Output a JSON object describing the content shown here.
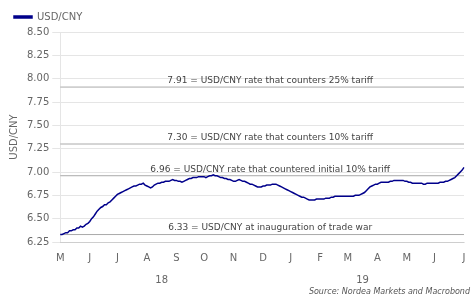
{
  "chart_data": {
    "type": "line",
    "ylabel": "USD/CNY",
    "ylim": [
      6.25,
      8.5
    ],
    "yticks": [
      6.25,
      {
        "value": 6.5,
        "label": "6.50"
      },
      6.75,
      {
        "value": 7,
        "label": "7.00"
      },
      7.25,
      {
        "value": 7.5,
        "label": "7.50"
      },
      7.75,
      {
        "value": 8,
        "label": "8.00"
      },
      8.25,
      {
        "value": 8.5,
        "label": "8.50"
      }
    ],
    "grid": true,
    "legend": "upper left",
    "categories": [
      "M",
      null,
      null,
      null,
      null,
      null,
      null,
      null,
      null,
      null,
      null,
      null,
      null,
      null,
      null,
      null,
      "J",
      null,
      null,
      null,
      null,
      null,
      null,
      null,
      null,
      null,
      null,
      null,
      null,
      null,
      null,
      "J",
      null,
      null,
      null,
      null,
      null,
      null,
      null,
      null,
      null,
      null,
      null,
      null,
      null,
      null,
      null,
      "A",
      null,
      null,
      null,
      null,
      null,
      null,
      null,
      null,
      null,
      null,
      null,
      null,
      null,
      null,
      null,
      "S",
      null,
      null,
      null,
      null,
      null,
      null,
      null,
      null,
      null,
      null,
      null,
      null,
      null,
      null,
      "O",
      null,
      null,
      null,
      null,
      null,
      null,
      null,
      null,
      null,
      null,
      null,
      null,
      null,
      null,
      null,
      "N",
      null,
      null,
      null,
      null,
      null,
      null,
      null,
      null,
      null,
      null,
      null,
      null,
      null,
      null,
      null,
      "D",
      null,
      null,
      null,
      null,
      null,
      null,
      null,
      null,
      null,
      null,
      null,
      null,
      null,
      null,
      "J",
      null,
      null,
      null,
      null,
      null,
      null,
      null,
      null,
      null,
      null,
      null,
      null,
      null,
      null,
      null,
      "F",
      null,
      null,
      null,
      null,
      null,
      null,
      null,
      null,
      null,
      null,
      null,
      null,
      null,
      null,
      "M",
      null,
      null,
      null,
      null,
      null,
      null,
      null,
      null,
      null,
      null,
      null,
      null,
      null,
      null,
      null,
      "A",
      null,
      null,
      null,
      null,
      null,
      null,
      null,
      null,
      null,
      null,
      null,
      null,
      null,
      null,
      null,
      "M",
      null,
      null,
      null,
      null,
      null,
      null,
      null,
      null,
      null,
      null,
      null,
      null,
      null,
      null,
      "J",
      null,
      null,
      null,
      null,
      null,
      null,
      null,
      null,
      null,
      null,
      null,
      null,
      null,
      null,
      null,
      "J"
    ],
    "year_labels": [
      null,
      null,
      null,
      null,
      null,
      null,
      null,
      null,
      null,
      null,
      null,
      null,
      null,
      null,
      null,
      null,
      null,
      null,
      null,
      null,
      null,
      null,
      null,
      null,
      null,
      null,
      null,
      null,
      null,
      null,
      null,
      null,
      null,
      null,
      null,
      null,
      null,
      null,
      null,
      null,
      null,
      null,
      null,
      null,
      null,
      null,
      null,
      null,
      null,
      null,
      null,
      null,
      null,
      null,
      null,
      "18",
      null,
      null,
      null,
      null,
      null,
      null,
      null,
      null,
      null,
      null,
      null,
      null,
      null,
      null,
      null,
      null,
      null,
      null,
      null,
      null,
      null,
      null,
      null,
      null,
      null,
      null,
      null,
      null,
      null,
      null,
      null,
      null,
      null,
      null,
      null,
      null,
      null,
      null,
      null,
      null,
      null,
      null,
      null,
      null,
      null,
      null,
      null,
      null,
      null,
      null,
      null,
      null,
      null,
      null,
      null,
      null,
      null,
      null,
      null,
      null,
      null,
      null,
      null,
      null,
      null,
      null,
      null,
      null,
      null,
      null,
      null,
      null,
      null,
      null,
      null,
      null,
      null,
      null,
      null,
      null,
      null,
      null,
      null,
      null,
      null,
      null,
      null,
      null,
      null,
      null,
      null,
      null,
      null,
      null,
      null,
      null,
      null,
      null,
      null,
      null,
      null,
      null,
      null,
      null,
      null,
      null,
      null,
      null,
      "19",
      null,
      null,
      null,
      null,
      null,
      null,
      null,
      null,
      null,
      null,
      null,
      null,
      null,
      null,
      null,
      null,
      null,
      null,
      null,
      null,
      null,
      null,
      null,
      null,
      null,
      null,
      null,
      null,
      null,
      null,
      null,
      null,
      null,
      null,
      null,
      null,
      null,
      null,
      null,
      null,
      null,
      null,
      null,
      null,
      null,
      null,
      null,
      null,
      null,
      null,
      null,
      null,
      null,
      null,
      null
    ],
    "series": [
      {
        "name": "USD/CNY",
        "color": "#00008B",
        "values": [
          6.33,
          6.33,
          6.34,
          6.35,
          6.35,
          6.37,
          6.37,
          6.38,
          6.38,
          6.4,
          6.4,
          6.42,
          6.41,
          6.42,
          6.44,
          6.45,
          6.47,
          6.5,
          6.52,
          6.55,
          6.58,
          6.6,
          6.62,
          6.63,
          6.65,
          6.65,
          6.67,
          6.68,
          6.7,
          6.72,
          6.74,
          6.76,
          6.77,
          6.78,
          6.79,
          6.8,
          6.81,
          6.82,
          6.83,
          6.84,
          6.85,
          6.85,
          6.86,
          6.87,
          6.87,
          6.88,
          6.86,
          6.85,
          6.84,
          6.83,
          6.84,
          6.86,
          6.87,
          6.88,
          6.88,
          6.89,
          6.89,
          6.9,
          6.9,
          6.9,
          6.91,
          6.92,
          6.91,
          6.91,
          6.9,
          6.9,
          6.89,
          6.9,
          6.91,
          6.92,
          6.93,
          6.93,
          6.94,
          6.94,
          6.94,
          6.95,
          6.95,
          6.95,
          6.95,
          6.94,
          6.95,
          6.96,
          6.96,
          6.97,
          6.96,
          6.96,
          6.95,
          6.94,
          6.94,
          6.93,
          6.93,
          6.92,
          6.92,
          6.91,
          6.9,
          6.9,
          6.91,
          6.92,
          6.91,
          6.9,
          6.9,
          6.89,
          6.88,
          6.87,
          6.87,
          6.86,
          6.85,
          6.84,
          6.84,
          6.84,
          6.85,
          6.85,
          6.86,
          6.86,
          6.86,
          6.87,
          6.87,
          6.87,
          6.86,
          6.85,
          6.84,
          6.83,
          6.82,
          6.81,
          6.8,
          6.79,
          6.78,
          6.77,
          6.76,
          6.75,
          6.74,
          6.73,
          6.73,
          6.72,
          6.71,
          6.7,
          6.7,
          6.7,
          6.7,
          6.71,
          6.71,
          6.71,
          6.71,
          6.71,
          6.72,
          6.72,
          6.72,
          6.73,
          6.73,
          6.74,
          6.74,
          6.74,
          6.74,
          6.74,
          6.74,
          6.74,
          6.74,
          6.74,
          6.74,
          6.74,
          6.75,
          6.75,
          6.75,
          6.76,
          6.77,
          6.78,
          6.8,
          6.82,
          6.84,
          6.85,
          6.86,
          6.87,
          6.87,
          6.88,
          6.89,
          6.89,
          6.89,
          6.89,
          6.89,
          6.9,
          6.9,
          6.91,
          6.91,
          6.91,
          6.91,
          6.91,
          6.91,
          6.9,
          6.9,
          6.89,
          6.89,
          6.88,
          6.88,
          6.88,
          6.88,
          6.88,
          6.88,
          6.87,
          6.87,
          6.88,
          6.88,
          6.88,
          6.88,
          6.88,
          6.88,
          6.88,
          6.89,
          6.89,
          6.89,
          6.9,
          6.9,
          6.91,
          6.92,
          6.93,
          6.94,
          6.96,
          6.98,
          7.0,
          7.02,
          7.05
        ]
      }
    ],
    "hlines": [
      {
        "y": 7.91,
        "label": "7.91 = USD/CNY rate that counters 25% tariff",
        "color": "#aaaaaa"
      },
      {
        "y": 7.3,
        "label": "7.30 = USD/CNY rate that counters 10% tariff",
        "color": "#aaaaaa"
      },
      {
        "y": 6.96,
        "label": "6.96 = USD/CNY rate that countered initial 10% tariff",
        "color": "#aaaaaa"
      },
      {
        "y": 6.33,
        "label": "6.33 = USD/CNY at inauguration of trade war",
        "color": "#aaaaaa"
      }
    ],
    "annotations": [
      "Source: Nordea Markets and Macrobond"
    ]
  }
}
